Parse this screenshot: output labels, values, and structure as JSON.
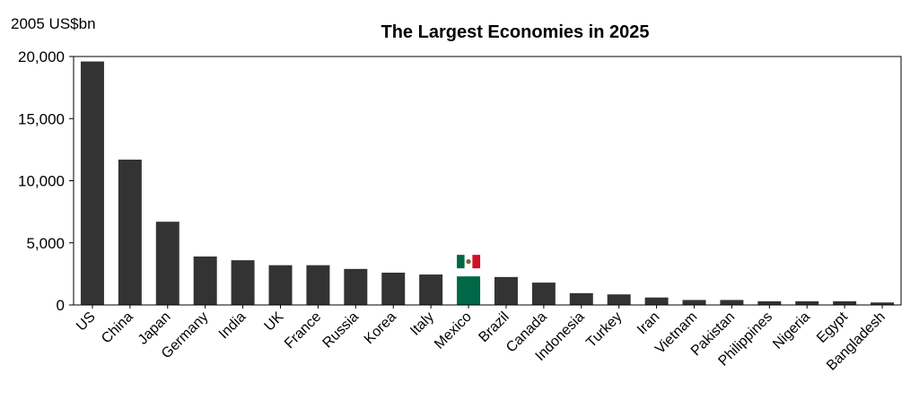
{
  "chart_data": {
    "type": "bar",
    "title": "The Largest Economies in 2025",
    "ylabel": "2005 US$bn",
    "xlabel": "",
    "ylim": [
      0,
      20000
    ],
    "yticks": [
      0,
      5000,
      10000,
      15000,
      20000
    ],
    "ytick_labels": [
      "0",
      "5,000",
      "10,000",
      "15,000",
      "20,000"
    ],
    "grid": false,
    "legend": "none",
    "categories": [
      "US",
      "China",
      "Japan",
      "Germany",
      "India",
      "UK",
      "France",
      "Russia",
      "Korea",
      "Italy",
      "Mexico",
      "Brazil",
      "Canada",
      "Indonesia",
      "Turkey",
      "Iran",
      "Vietnam",
      "Pakistan",
      "Philippines",
      "Nigeria",
      "Egypt",
      "Bangladesh"
    ],
    "values": [
      19600,
      11700,
      6700,
      3900,
      3600,
      3200,
      3200,
      2900,
      2600,
      2450,
      2300,
      2250,
      1800,
      950,
      850,
      600,
      400,
      400,
      300,
      300,
      300,
      200
    ],
    "highlight_category": "Mexico",
    "highlight_icon": "mexico-flag-icon",
    "colors": {
      "bar": "#333333",
      "highlight": "#006847",
      "flag_green": "#006847",
      "flag_white": "#ffffff",
      "flag_red": "#ce1126",
      "emblem": "#8b5a2b"
    }
  }
}
